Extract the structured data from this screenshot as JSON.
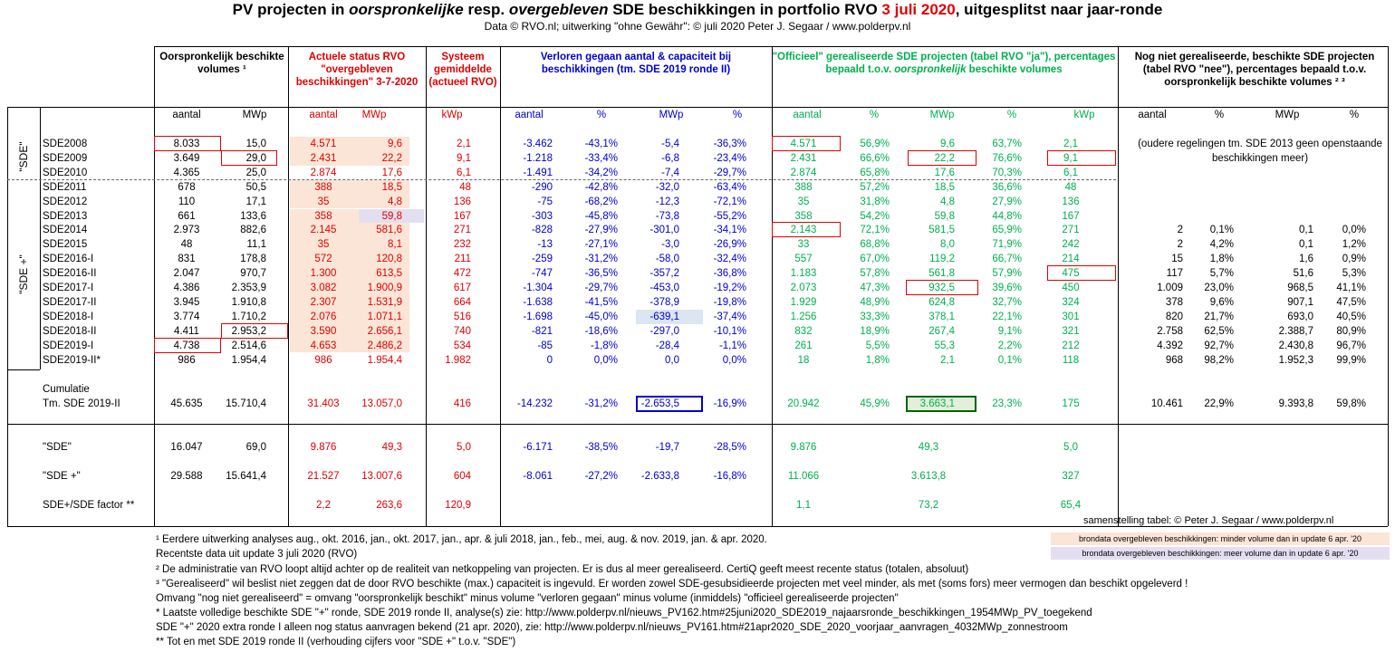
{
  "title": {
    "p1": "PV projecten in ",
    "p2": "oorspronkelijke",
    "p3": " resp. ",
    "p4": "overgebleven",
    "p5": " SDE beschikkingen in portfolio RVO ",
    "p6": "3 juli 2020",
    "p7": ", uitgesplitst naar jaar-ronde"
  },
  "subtitle": "Data © RVO.nl; uitwerking \"ohne Gewähr\": © juli 2020 Peter J. Segaar / www.polderpv.nl",
  "headers": {
    "orig": "Oorspronkelijk beschikte volumes ¹",
    "actueel": "Actuele status RVO \"overgebleven beschikkingen\" 3-7-2020",
    "systeem": "Systeem gemiddelde (actueel RVO)",
    "verloren": "Verloren gegaan aantal & capaciteit bij beschikkingen (tm. SDE 2019 ronde II)",
    "officieel_a": "\"Officieel\" gerealiseerde SDE projecten (tabel RVO \"ja\"), percentages bepaald t.o.v. ",
    "officieel_b": "oorspronkelijk",
    "officieel_c": " beschikte volumes",
    "nognniet": "Nog niet gerealiseerde, beschikte SDE projecten (tabel RVO \"nee\"), percentages bepaald t.o.v. oorspronkelijk beschikte volumes ² ³"
  },
  "subheaders": [
    "aantal",
    "MWp",
    "aantal",
    "MWp",
    "kWp",
    "aantal",
    "%",
    "MWp",
    "%",
    "aantal",
    "%",
    "MWp",
    "%",
    "kWp",
    "aantal",
    "%",
    "MWp",
    "%"
  ],
  "group_labels": {
    "sde": "\"SDE\"",
    "sdeplus": "\"SDE +\""
  },
  "rows": [
    {
      "name": "SDE2008",
      "v": [
        "8.033",
        "15,0",
        "4.571",
        "9,6",
        "2,1",
        "-3.462",
        "-43,1%",
        "-5,4",
        "-36,3%",
        "4.571",
        "56,9%",
        "9,6",
        "63,7%",
        "2,1",
        "",
        "",
        "",
        ""
      ]
    },
    {
      "name": "SDE2009",
      "v": [
        "3.649",
        "29,0",
        "2.431",
        "22,2",
        "9,1",
        "-1.218",
        "-33,4%",
        "-6,8",
        "-23,4%",
        "2.431",
        "66,6%",
        "22,2",
        "76,6%",
        "9,1",
        "",
        "",
        "",
        ""
      ]
    },
    {
      "name": "SDE2010",
      "v": [
        "4.365",
        "25,0",
        "2.874",
        "17,6",
        "6,1",
        "-1.491",
        "-34,2%",
        "-7,4",
        "-29,7%",
        "2.874",
        "65,8%",
        "17,6",
        "70,3%",
        "6,1",
        "",
        "",
        "",
        ""
      ]
    },
    {
      "name": "SDE2011",
      "v": [
        "678",
        "50,5",
        "388",
        "18,5",
        "48",
        "-290",
        "-42,8%",
        "-32,0",
        "-63,4%",
        "388",
        "57,2%",
        "18,5",
        "36,6%",
        "48",
        "",
        "",
        "",
        ""
      ]
    },
    {
      "name": "SDE2012",
      "v": [
        "110",
        "17,1",
        "35",
        "4,8",
        "136",
        "-75",
        "-68,2%",
        "-12,3",
        "-72,1%",
        "35",
        "31,8%",
        "4,8",
        "27,9%",
        "136",
        "",
        "",
        "",
        ""
      ]
    },
    {
      "name": "SDE2013",
      "v": [
        "661",
        "133,6",
        "358",
        "59,8",
        "167",
        "-303",
        "-45,8%",
        "-73,8",
        "-55,2%",
        "358",
        "54,2%",
        "59,8",
        "44,8%",
        "167",
        "",
        "",
        "",
        ""
      ]
    },
    {
      "name": "SDE2014",
      "v": [
        "2.973",
        "882,6",
        "2.145",
        "581,6",
        "271",
        "-828",
        "-27,9%",
        "-301,0",
        "-34,1%",
        "2.143",
        "72,1%",
        "581,5",
        "65,9%",
        "271",
        "2",
        "0,1%",
        "0,1",
        "0,0%"
      ]
    },
    {
      "name": "SDE2015",
      "v": [
        "48",
        "11,1",
        "35",
        "8,1",
        "232",
        "-13",
        "-27,1%",
        "-3,0",
        "-26,9%",
        "33",
        "68,8%",
        "8,0",
        "71,9%",
        "242",
        "2",
        "4,2%",
        "0,1",
        "1,2%"
      ]
    },
    {
      "name": "SDE2016-I",
      "v": [
        "831",
        "178,8",
        "572",
        "120,8",
        "211",
        "-259",
        "-31,2%",
        "-58,0",
        "-32,4%",
        "557",
        "67,0%",
        "119,2",
        "66,7%",
        "214",
        "15",
        "1,8%",
        "1,6",
        "0,9%"
      ]
    },
    {
      "name": "SDE2016-II",
      "v": [
        "2.047",
        "970,7",
        "1.300",
        "613,5",
        "472",
        "-747",
        "-36,5%",
        "-357,2",
        "-36,8%",
        "1.183",
        "57,8%",
        "561,8",
        "57,9%",
        "475",
        "117",
        "5,7%",
        "51,6",
        "5,3%"
      ]
    },
    {
      "name": "SDE2017-I",
      "v": [
        "4.386",
        "2.353,9",
        "3.082",
        "1.900,9",
        "617",
        "-1.304",
        "-29,7%",
        "-453,0",
        "-19,2%",
        "2.073",
        "47,3%",
        "932,5",
        "39,6%",
        "450",
        "1.009",
        "23,0%",
        "968,5",
        "41,1%"
      ]
    },
    {
      "name": "SDE2017-II",
      "v": [
        "3.945",
        "1.910,8",
        "2.307",
        "1.531,9",
        "664",
        "-1.638",
        "-41,5%",
        "-378,9",
        "-19,8%",
        "1.929",
        "48,9%",
        "624,8",
        "32,7%",
        "324",
        "378",
        "9,6%",
        "907,1",
        "47,5%"
      ]
    },
    {
      "name": "SDE2018-I",
      "v": [
        "3.774",
        "1.710,2",
        "2.076",
        "1.071,1",
        "516",
        "-1.698",
        "-45,0%",
        "-639,1",
        "-37,4%",
        "1.256",
        "33,3%",
        "378,1",
        "22,1%",
        "301",
        "820",
        "21,7%",
        "693,0",
        "40,5%"
      ]
    },
    {
      "name": "SDE2018-II",
      "v": [
        "4.411",
        "2.953,2",
        "3.590",
        "2.656,1",
        "740",
        "-821",
        "-18,6%",
        "-297,0",
        "-10,1%",
        "832",
        "18,9%",
        "267,4",
        "9,1%",
        "321",
        "2.758",
        "62,5%",
        "2.388,7",
        "80,9%"
      ]
    },
    {
      "name": "SDE2019-I",
      "v": [
        "4.738",
        "2.514,6",
        "4.653",
        "2.486,2",
        "534",
        "-85",
        "-1,8%",
        "-28,4",
        "-1,1%",
        "261",
        "5,5%",
        "55,3",
        "2,2%",
        "212",
        "4.392",
        "92,7%",
        "2.430,8",
        "96,7%"
      ]
    },
    {
      "name": "SDE2019-II*",
      "v": [
        "986",
        "1.954,4",
        "986",
        "1.954,4",
        "1.982",
        "0",
        "0,0%",
        "0,0",
        "0,0%",
        "18",
        "1,8%",
        "2,1",
        "0,1%",
        "118",
        "968",
        "98,2%",
        "1.952,3",
        "99,9%"
      ]
    }
  ],
  "older_note": "(oudere regelingen tm. SDE 2013 geen openstaande beschikkingen meer)",
  "cumulatie": {
    "label1": "Cumulatie",
    "label2": "Tm. SDE 2019-II",
    "v": [
      "45.635",
      "15.710,4",
      "31.403",
      "13.057,0",
      "416",
      "-14.232",
      "-31,2%",
      "-2.653,5",
      "-16,9%",
      "20.942",
      "45,9%",
      "3.663,1",
      "23,3%",
      "175",
      "10.461",
      "22,9%",
      "9.393,8",
      "59,8%"
    ]
  },
  "summary": [
    {
      "name": "\"SDE\"",
      "v": [
        "16.047",
        "69,0",
        "9.876",
        "49,3",
        "5,0",
        "-6.171",
        "-38,5%",
        "-19,7",
        "-28,5%",
        "9.876",
        "",
        "49,3",
        "",
        "5,0",
        "",
        "",
        "",
        ""
      ]
    },
    {
      "name": "\"SDE +\"",
      "v": [
        "29.588",
        "15.641,4",
        "21.527",
        "13.007,6",
        "604",
        "-8.061",
        "-27,2%",
        "-2.633,8",
        "-16,8%",
        "11.066",
        "",
        "3.613,8",
        "",
        "327",
        "",
        "",
        "",
        ""
      ]
    },
    {
      "name": "SDE+/SDE factor **",
      "v": [
        "",
        "",
        "2,2",
        "263,6",
        "120,9",
        "",
        "",
        "",
        "",
        "1,1",
        "",
        "73,2",
        "",
        "65,4",
        "",
        "",
        "",
        ""
      ]
    }
  ],
  "credit": "samenstelling tabel: © Peter J. Segaar / www.polderpv.nl",
  "notes": [
    "¹ Eerdere uitwerking analyses aug., okt. 2016, jan., okt.  2017, jan., apr. & juli 2018, jan., feb., mei, aug. & nov. 2019, jan. & apr. 2020.",
    "  Recentste data uit update 3 juli 2020 (RVO)",
    "² De administratie van RVO loopt altijd achter op de realiteit van netkoppeling van projecten. Er is dus al meer gerealiseerd. CertiQ geeft meest recente status (totalen, absoluut)",
    "³ \"Gerealiseerd\" wil beslist niet zeggen dat de door RVO beschikte (max.) capaciteit is ingevuld. Er worden zowel SDE-gesubsidieerde projecten met veel minder, als met (soms fors) meer  vermogen dan beschikt opgeleverd !",
    "Omvang \"nog niet gerealiseerd\" = omvang \"oorspronkelijk beschikt\" minus volume \"verloren gegaan\" minus volume (inmiddels) \"officieel gerealiseerde projecten\"",
    "* Laatste volledige beschikte SDE \"+\" ronde, SDE 2019 ronde II, analyse(s) zie: http://www.polderpv.nl/nieuws_PV162.htm#25juni2020_SDE2019_najaarsronde_beschikkingen_1954MWp_PV_toegekend",
    "SDE \"+\" 2020 extra ronde I alleen nog status aanvragen bekend (21 apr. 2020), zie: http://www.polderpv.nl/nieuws_PV161.htm#21apr2020_SDE_2020_voorjaar_aanvragen_4032MWp_zonnestroom",
    "** Tot en met SDE 2019 ronde II (verhouding cijfers voor \"SDE +\" t.o.v. \"SDE\")"
  ],
  "legend": {
    "peach": "brondata overgebleven beschikkingen: minder volume dan in update 6 apr. '20",
    "lav": "brondata overgebleven beschikkingen: meer volume dan in update 6 apr. '20"
  }
}
